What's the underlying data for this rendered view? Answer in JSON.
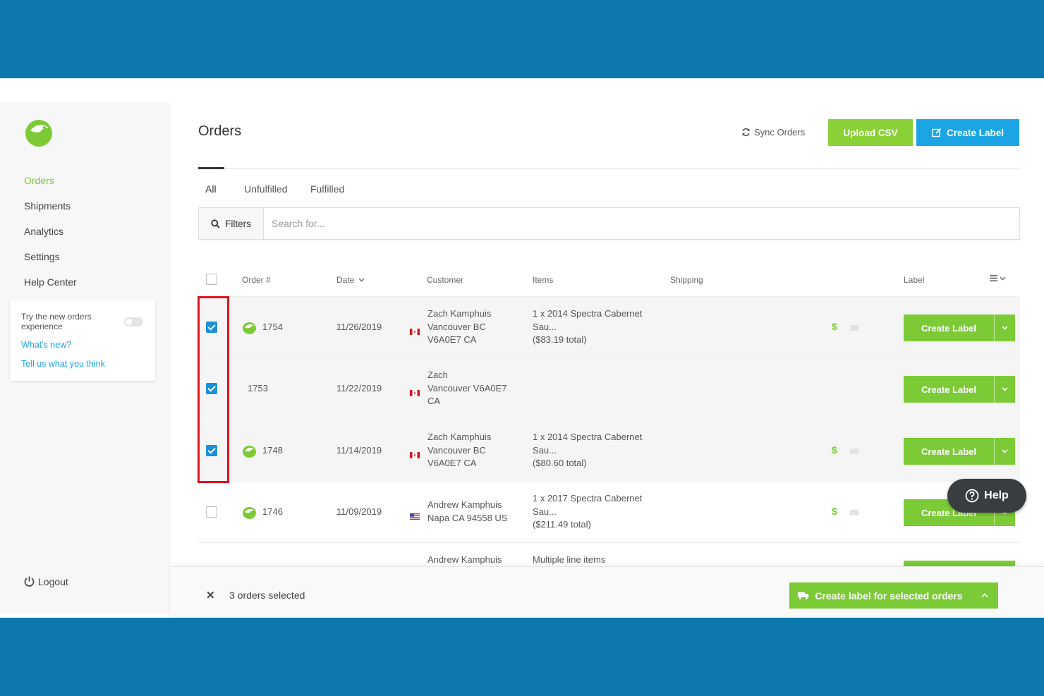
{
  "colors": {
    "brand_green": "#7ccb36",
    "upload_green": "#8ad137",
    "create_blue": "#1ba5e5",
    "backdrop_blue": "#0d78ab",
    "highlight_red": "#e0141e",
    "checkbox_blue": "#1c8fd9"
  },
  "sidebar": {
    "logo_icon": "green-bird-logo-icon",
    "items": [
      {
        "label": "Orders",
        "active": true
      },
      {
        "label": "Shipments",
        "active": false
      },
      {
        "label": "Analytics",
        "active": false
      },
      {
        "label": "Settings",
        "active": false
      },
      {
        "label": "Help Center",
        "active": false
      }
    ],
    "promo": {
      "text": "Try the new orders experience",
      "toggle_on": false,
      "link1": "What's new?",
      "link2": "Tell us what you think"
    },
    "logout": "Logout"
  },
  "header": {
    "title": "Orders",
    "sync": "Sync Orders",
    "upload_csv": "Upload CSV",
    "create_label": "Create Label"
  },
  "tabs": [
    {
      "label": "All",
      "active": true
    },
    {
      "label": "Unfulfilled",
      "active": false
    },
    {
      "label": "Fulfilled",
      "active": false
    }
  ],
  "search": {
    "filters_label": "Filters",
    "placeholder": "Search for..."
  },
  "table": {
    "columns": {
      "order": "Order #",
      "date": "Date",
      "customer": "Customer",
      "items": "Items",
      "shipping": "Shipping",
      "label": "Label"
    },
    "rows": [
      {
        "checked": true,
        "has_logo": true,
        "order": "1754",
        "date": "11/26/2019",
        "flag": "CA",
        "customer_name": "Zach Kamphuis",
        "customer_line2": "Vancouver BC",
        "customer_line3": "V6A0E7 CA",
        "items_line1": "1 x 2014 Spectra Cabernet",
        "items_line2": "Sau...",
        "items_line3": "($83.19 total)",
        "dollar": "$",
        "button": "Create Label"
      },
      {
        "checked": true,
        "has_logo": false,
        "order": "1753",
        "date": "11/22/2019",
        "flag": "CA",
        "customer_name": "Zach",
        "customer_line2": "Vancouver V6A0E7",
        "customer_line3": "CA",
        "items_line1": "",
        "items_line2": "",
        "items_line3": "",
        "dollar": "",
        "button": "Create Label"
      },
      {
        "checked": true,
        "has_logo": true,
        "order": "1748",
        "date": "11/14/2019",
        "flag": "CA",
        "customer_name": "Zach Kamphuis",
        "customer_line2": "Vancouver BC",
        "customer_line3": "V6A0E7 CA",
        "items_line1": "1 x 2014 Spectra Cabernet",
        "items_line2": "Sau...",
        "items_line3": "($80.60 total)",
        "dollar": "$",
        "button": "Create Label"
      },
      {
        "checked": false,
        "has_logo": true,
        "order": "1746",
        "date": "11/09/2019",
        "flag": "US",
        "customer_name": "Andrew Kamphuis",
        "customer_line2": "Napa CA 94558 US",
        "customer_line3": "",
        "items_line1": "1 x 2017 Spectra Cabernet",
        "items_line2": "Sau...",
        "items_line3": "($211.49 total)",
        "dollar": "$",
        "button": "Create Label"
      },
      {
        "checked": false,
        "has_logo": true,
        "order": "",
        "date": "",
        "flag": "",
        "customer_name": "Andrew Kamphuis",
        "customer_line2": "",
        "customer_line3": "",
        "items_line1": "Multiple line items",
        "items_line2": "",
        "items_line3": "",
        "dollar": "",
        "button": ""
      }
    ]
  },
  "help_button": "Help",
  "bottom_bar": {
    "selected_text": "3 orders selected",
    "bulk_button": "Create label for selected orders"
  }
}
